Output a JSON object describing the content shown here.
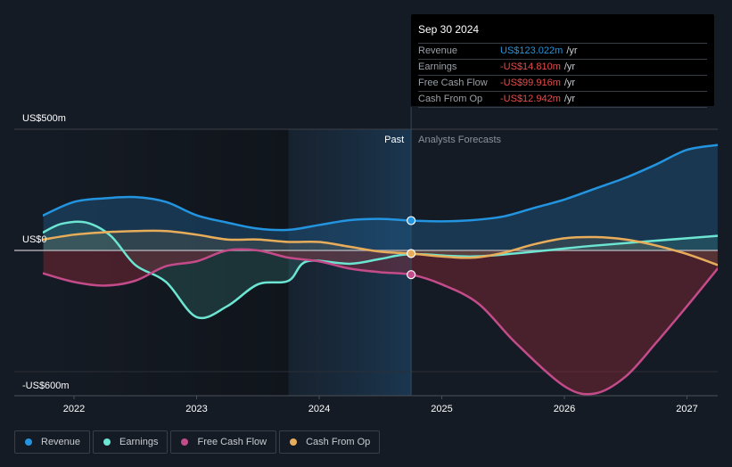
{
  "tooltip": {
    "date": "Sep 30 2024",
    "rows": [
      {
        "label": "Revenue",
        "value": "US$123.022m",
        "unit": "/yr",
        "color": "#2394df"
      },
      {
        "label": "Earnings",
        "value": "-US$14.810m",
        "unit": "/yr",
        "color": "#e64c4c"
      },
      {
        "label": "Free Cash Flow",
        "value": "-US$99.916m",
        "unit": "/yr",
        "color": "#e64c4c"
      },
      {
        "label": "Cash From Op",
        "value": "-US$12.942m",
        "unit": "/yr",
        "color": "#e64c4c"
      }
    ]
  },
  "legend": [
    {
      "label": "Revenue",
      "color": "#2394df"
    },
    {
      "label": "Earnings",
      "color": "#6ce5d2"
    },
    {
      "label": "Free Cash Flow",
      "color": "#c44b8a"
    },
    {
      "label": "Cash From Op",
      "color": "#e8ad5a"
    }
  ],
  "chart_data": {
    "type": "line",
    "title": "",
    "xlabel": "",
    "ylabel": "",
    "y_unit": "US$m",
    "ylim": [
      -600,
      500
    ],
    "xlim": [
      2021.55,
      2027.25
    ],
    "grid": true,
    "y_ticks": [
      {
        "value": 500,
        "label": "US$500m"
      },
      {
        "value": 0,
        "label": "US$0"
      },
      {
        "value": -600,
        "label": "-US$600m"
      }
    ],
    "x_ticks": [
      {
        "value": 2022,
        "label": "2022"
      },
      {
        "value": 2023,
        "label": "2023"
      },
      {
        "value": 2024,
        "label": "2024"
      },
      {
        "value": 2025,
        "label": "2025"
      },
      {
        "value": 2026,
        "label": "2026"
      },
      {
        "value": 2027,
        "label": "2027"
      }
    ],
    "past_region": {
      "start": 2023.75,
      "end": 2024.75,
      "label": "Past"
    },
    "forecast_label": "Analysts Forecasts",
    "divider_x": 2024.75,
    "highlight_x": 2024.75,
    "series": [
      {
        "name": "Revenue",
        "color": "#2394df",
        "points": [
          [
            2021.75,
            145
          ],
          [
            2022.0,
            200
          ],
          [
            2022.25,
            215
          ],
          [
            2022.5,
            220
          ],
          [
            2022.75,
            200
          ],
          [
            2023.0,
            145
          ],
          [
            2023.25,
            115
          ],
          [
            2023.5,
            90
          ],
          [
            2023.75,
            85
          ],
          [
            2024.0,
            105
          ],
          [
            2024.25,
            125
          ],
          [
            2024.5,
            130
          ],
          [
            2024.75,
            123
          ],
          [
            2025.0,
            120
          ],
          [
            2025.25,
            125
          ],
          [
            2025.5,
            140
          ],
          [
            2025.75,
            175
          ],
          [
            2026.0,
            210
          ],
          [
            2026.25,
            255
          ],
          [
            2026.5,
            300
          ],
          [
            2026.75,
            355
          ],
          [
            2027.0,
            415
          ],
          [
            2027.25,
            435
          ]
        ]
      },
      {
        "name": "Earnings",
        "color": "#6ce5d2",
        "points": [
          [
            2021.75,
            75
          ],
          [
            2021.9,
            110
          ],
          [
            2022.1,
            115
          ],
          [
            2022.3,
            60
          ],
          [
            2022.5,
            -60
          ],
          [
            2022.75,
            -130
          ],
          [
            2023.0,
            -275
          ],
          [
            2023.25,
            -230
          ],
          [
            2023.5,
            -140
          ],
          [
            2023.75,
            -125
          ],
          [
            2023.9,
            -45
          ],
          [
            2024.25,
            -55
          ],
          [
            2024.5,
            -35
          ],
          [
            2024.75,
            -15
          ],
          [
            2025.25,
            -25
          ],
          [
            2025.75,
            -5
          ],
          [
            2026.25,
            20
          ],
          [
            2027.25,
            60
          ]
        ]
      },
      {
        "name": "Free Cash Flow",
        "color": "#c44b8a",
        "points": [
          [
            2021.75,
            -95
          ],
          [
            2022.0,
            -130
          ],
          [
            2022.25,
            -145
          ],
          [
            2022.5,
            -125
          ],
          [
            2022.75,
            -65
          ],
          [
            2023.0,
            -45
          ],
          [
            2023.25,
            0
          ],
          [
            2023.5,
            0
          ],
          [
            2023.75,
            -30
          ],
          [
            2024.0,
            -45
          ],
          [
            2024.25,
            -75
          ],
          [
            2024.5,
            -90
          ],
          [
            2024.75,
            -100
          ],
          [
            2025.0,
            -140
          ],
          [
            2025.3,
            -220
          ],
          [
            2025.6,
            -380
          ],
          [
            2026.0,
            -560
          ],
          [
            2026.25,
            -590
          ],
          [
            2026.5,
            -520
          ],
          [
            2026.75,
            -380
          ],
          [
            2027.0,
            -230
          ],
          [
            2027.25,
            -75
          ]
        ]
      },
      {
        "name": "Cash From Op",
        "color": "#e8ad5a",
        "points": [
          [
            2021.75,
            45
          ],
          [
            2022.0,
            65
          ],
          [
            2022.25,
            75
          ],
          [
            2022.5,
            80
          ],
          [
            2022.75,
            80
          ],
          [
            2023.0,
            65
          ],
          [
            2023.25,
            45
          ],
          [
            2023.5,
            45
          ],
          [
            2023.75,
            35
          ],
          [
            2024.0,
            35
          ],
          [
            2024.25,
            15
          ],
          [
            2024.5,
            -5
          ],
          [
            2024.75,
            -13
          ],
          [
            2025.0,
            -25
          ],
          [
            2025.25,
            -30
          ],
          [
            2025.5,
            -10
          ],
          [
            2025.75,
            25
          ],
          [
            2026.0,
            50
          ],
          [
            2026.25,
            55
          ],
          [
            2026.5,
            45
          ],
          [
            2026.75,
            20
          ],
          [
            2027.0,
            -15
          ],
          [
            2027.25,
            -60
          ]
        ]
      }
    ],
    "highlight_values": {
      "Revenue": 123.022,
      "Earnings": -14.81,
      "Free Cash Flow": -99.916,
      "Cash From Op": -12.942
    }
  }
}
